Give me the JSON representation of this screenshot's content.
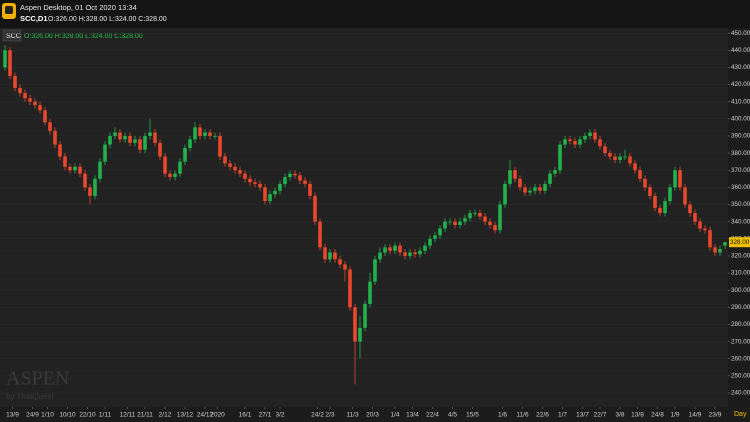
{
  "app": {
    "title": "Aspen Desktop, 01 Oct 2020 13:34",
    "symbol": "SCC,D1",
    "ohlc": "O:326.00 H:328.00 L:324.00 C:328.00"
  },
  "chart_data": {
    "type": "candlestick",
    "legend_symbol": "SCC",
    "legend_ohlc": "O:326.00 H:328.00 L:324.00 C:328.00",
    "watermark": "ASPEN",
    "watermark_sub": "by ThaiQuest",
    "timeframe": "Day",
    "last_price": {
      "value": 328,
      "label": "328.00"
    },
    "up_color": "#22b14c",
    "down_color": "#e8482c",
    "open": [
      430,
      440,
      425,
      418,
      415,
      412,
      410,
      408,
      405,
      398,
      393,
      385,
      378,
      372,
      370,
      372,
      368,
      360,
      355,
      365,
      375,
      385,
      390,
      392,
      388,
      390,
      386,
      388,
      382,
      390,
      392,
      386,
      378,
      368,
      366,
      368,
      375,
      383,
      388,
      395,
      390,
      392,
      390,
      390,
      378,
      374,
      372,
      370,
      368,
      365,
      363,
      362,
      360,
      352,
      356,
      358,
      362,
      366,
      368,
      367,
      364,
      362,
      355,
      340,
      325,
      318,
      322,
      318,
      315,
      312,
      290,
      270,
      278,
      292,
      305,
      318,
      322,
      325,
      323,
      326,
      322,
      320,
      322,
      321,
      323,
      326,
      330,
      332,
      336,
      340,
      340,
      338,
      340,
      342,
      345,
      345,
      343,
      340,
      338,
      335,
      350,
      362,
      370,
      365,
      360,
      357,
      358,
      360,
      358,
      362,
      368,
      370,
      385,
      388,
      387,
      385,
      388,
      390,
      392,
      388,
      384,
      380,
      378,
      376,
      378,
      378,
      374,
      370,
      365,
      360,
      355,
      348,
      345,
      352,
      360,
      370,
      360,
      350,
      345,
      340,
      336,
      335,
      325,
      322,
      326
    ],
    "high": [
      443,
      442,
      427,
      420,
      417,
      414,
      412,
      410,
      407,
      400,
      395,
      387,
      380,
      374,
      374,
      374,
      370,
      362,
      367,
      377,
      387,
      392,
      395,
      394,
      392,
      392,
      390,
      390,
      392,
      400,
      394,
      388,
      380,
      370,
      370,
      377,
      385,
      390,
      398,
      397,
      394,
      394,
      392,
      392,
      380,
      376,
      374,
      372,
      370,
      367,
      365,
      364,
      362,
      358,
      360,
      364,
      368,
      370,
      370,
      369,
      366,
      364,
      357,
      342,
      327,
      324,
      324,
      320,
      317,
      314,
      292,
      285,
      294,
      310,
      320,
      325,
      327,
      327,
      328,
      328,
      324,
      324,
      324,
      325,
      328,
      332,
      334,
      338,
      342,
      342,
      342,
      342,
      344,
      347,
      347,
      347,
      345,
      342,
      340,
      352,
      364,
      376,
      372,
      367,
      362,
      360,
      362,
      362,
      364,
      370,
      372,
      387,
      390,
      390,
      389,
      390,
      392,
      394,
      394,
      390,
      386,
      382,
      380,
      380,
      382,
      380,
      376,
      372,
      367,
      362,
      357,
      350,
      354,
      362,
      372,
      372,
      362,
      352,
      347,
      342,
      338,
      337,
      327,
      326,
      328
    ],
    "low": [
      428,
      423,
      416,
      413,
      410,
      408,
      406,
      403,
      396,
      391,
      383,
      376,
      370,
      368,
      368,
      366,
      358,
      350,
      353,
      363,
      373,
      383,
      388,
      386,
      386,
      384,
      384,
      380,
      380,
      388,
      384,
      376,
      366,
      364,
      364,
      366,
      373,
      381,
      386,
      388,
      388,
      388,
      388,
      376,
      372,
      370,
      368,
      366,
      363,
      361,
      360,
      358,
      350,
      350,
      354,
      356,
      360,
      364,
      365,
      362,
      360,
      353,
      338,
      323,
      316,
      316,
      316,
      313,
      305,
      288,
      245,
      260,
      276,
      290,
      303,
      316,
      320,
      321,
      321,
      320,
      318,
      318,
      319,
      319,
      321,
      324,
      328,
      330,
      334,
      338,
      336,
      336,
      338,
      340,
      343,
      341,
      338,
      336,
      333,
      333,
      348,
      360,
      363,
      358,
      355,
      355,
      356,
      356,
      356,
      360,
      366,
      368,
      383,
      385,
      383,
      383,
      386,
      388,
      386,
      382,
      378,
      376,
      374,
      374,
      376,
      372,
      368,
      363,
      358,
      353,
      346,
      343,
      343,
      350,
      358,
      358,
      348,
      343,
      338,
      334,
      333,
      323,
      320,
      320,
      324
    ],
    "close": [
      440,
      425,
      418,
      415,
      412,
      410,
      408,
      405,
      398,
      393,
      385,
      378,
      372,
      370,
      372,
      368,
      360,
      355,
      365,
      375,
      385,
      390,
      392,
      388,
      390,
      386,
      388,
      382,
      390,
      392,
      386,
      378,
      368,
      366,
      368,
      375,
      383,
      388,
      395,
      390,
      392,
      390,
      390,
      378,
      374,
      372,
      370,
      368,
      365,
      363,
      362,
      360,
      352,
      356,
      358,
      362,
      366,
      368,
      367,
      364,
      362,
      355,
      340,
      325,
      318,
      322,
      318,
      315,
      312,
      290,
      270,
      278,
      292,
      305,
      318,
      322,
      325,
      323,
      326,
      322,
      320,
      322,
      321,
      323,
      326,
      330,
      332,
      336,
      340,
      340,
      338,
      340,
      342,
      345,
      345,
      343,
      340,
      338,
      335,
      350,
      362,
      370,
      365,
      360,
      357,
      358,
      360,
      358,
      362,
      368,
      370,
      385,
      388,
      387,
      385,
      388,
      390,
      392,
      388,
      384,
      380,
      378,
      376,
      378,
      378,
      374,
      370,
      365,
      360,
      355,
      348,
      345,
      352,
      360,
      370,
      360,
      350,
      345,
      340,
      336,
      335,
      325,
      322,
      324,
      328
    ],
    "ylim": [
      233,
      453
    ],
    "yticks": [
      {
        "value": 240,
        "label": "240.00"
      },
      {
        "value": 250,
        "label": "250.00"
      },
      {
        "value": 260,
        "label": "260.00"
      },
      {
        "value": 270,
        "label": "270.00"
      },
      {
        "value": 280,
        "label": "280.00"
      },
      {
        "value": 290,
        "label": "290.00"
      },
      {
        "value": 300,
        "label": "300.00"
      },
      {
        "value": 310,
        "label": "310.00"
      },
      {
        "value": 320,
        "label": "320.00"
      },
      {
        "value": 330,
        "label": "330.00"
      },
      {
        "value": 340,
        "label": "340.00"
      },
      {
        "value": 350,
        "label": "350.00"
      },
      {
        "value": 360,
        "label": "360.00"
      },
      {
        "value": 370,
        "label": "370.00"
      },
      {
        "value": 380,
        "label": "380.00"
      },
      {
        "value": 390,
        "label": "390.00"
      },
      {
        "value": 400,
        "label": "400.00"
      },
      {
        "value": 410,
        "label": "410.00"
      },
      {
        "value": 420,
        "label": "420.00"
      },
      {
        "value": 430,
        "label": "430.00"
      },
      {
        "value": 440,
        "label": "440.00"
      },
      {
        "value": 450,
        "label": "450.00"
      }
    ],
    "xlim": [
      -1,
      145
    ],
    "xticks": [
      {
        "value": 1.5,
        "label": "13/9"
      },
      {
        "value": 5.5,
        "label": "24/9"
      },
      {
        "value": 8.5,
        "label": "1/10"
      },
      {
        "value": 12.5,
        "label": "10/10"
      },
      {
        "value": 16.5,
        "label": "22/10"
      },
      {
        "value": 20,
        "label": "1/11"
      },
      {
        "value": 24.5,
        "label": "12/11"
      },
      {
        "value": 28,
        "label": "21/11"
      },
      {
        "value": 32,
        "label": "2/12"
      },
      {
        "value": 36,
        "label": "13/12"
      },
      {
        "value": 40,
        "label": "24/12"
      },
      {
        "value": 42.5,
        "label": "2020"
      },
      {
        "value": 48,
        "label": "16/1"
      },
      {
        "value": 52,
        "label": "27/1"
      },
      {
        "value": 55,
        "label": "3/2"
      },
      {
        "value": 62.5,
        "label": "24/2"
      },
      {
        "value": 65,
        "label": "2/3"
      },
      {
        "value": 69.5,
        "label": "11/3"
      },
      {
        "value": 73.5,
        "label": "20/3"
      },
      {
        "value": 78,
        "label": "1/4"
      },
      {
        "value": 81.5,
        "label": "13/4"
      },
      {
        "value": 85.5,
        "label": "22/4"
      },
      {
        "value": 89.5,
        "label": "4/5"
      },
      {
        "value": 93.5,
        "label": "15/5"
      },
      {
        "value": 99.5,
        "label": "1/6"
      },
      {
        "value": 103.5,
        "label": "11/6"
      },
      {
        "value": 107.5,
        "label": "22/6"
      },
      {
        "value": 111.5,
        "label": "1/7"
      },
      {
        "value": 115.5,
        "label": "13/7"
      },
      {
        "value": 119,
        "label": "22/7"
      },
      {
        "value": 123,
        "label": "3/8"
      },
      {
        "value": 126.5,
        "label": "13/8"
      },
      {
        "value": 130.5,
        "label": "24/8"
      },
      {
        "value": 134,
        "label": "1/9"
      },
      {
        "value": 138,
        "label": "14/9"
      },
      {
        "value": 142,
        "label": "23/9"
      }
    ],
    "grid": true
  }
}
